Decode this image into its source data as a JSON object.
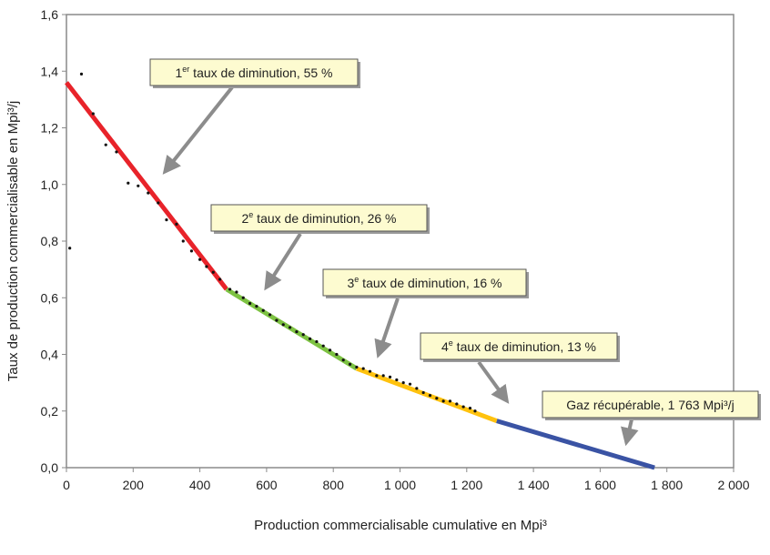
{
  "chart_data": {
    "type": "line",
    "xlabel": "Production commercialisable cumulative en Mpi³",
    "ylabel": "Taux de production commercialisable en Mpi³/j",
    "xlim": [
      0,
      2000
    ],
    "ylim": [
      0,
      1.6
    ],
    "x_ticks": [
      "0",
      "200",
      "400",
      "600",
      "800",
      "1 000",
      "1 200",
      "1 400",
      "1 600",
      "1 800",
      "2 000"
    ],
    "y_ticks": [
      "0,0",
      "0,2",
      "0,4",
      "0,6",
      "0,8",
      "1,0",
      "1,2",
      "1,4",
      "1,6"
    ],
    "grid": false,
    "series": [
      {
        "color": "#e8232a",
        "points": [
          [
            0,
            1.36
          ],
          [
            480,
            0.63
          ]
        ]
      },
      {
        "color": "#7dc242",
        "points": [
          [
            480,
            0.63
          ],
          [
            870,
            0.35
          ]
        ]
      },
      {
        "color": "#ffc20e",
        "points": [
          [
            870,
            0.35
          ],
          [
            1290,
            0.165
          ]
        ]
      },
      {
        "color": "#3a53a4",
        "points": [
          [
            1290,
            0.165
          ],
          [
            1763,
            0
          ]
        ]
      }
    ],
    "observations": {
      "color": "#111111",
      "points": [
        [
          10,
          0.775
        ],
        [
          45,
          1.39
        ],
        [
          80,
          1.25
        ],
        [
          118,
          1.14
        ],
        [
          150,
          1.115
        ],
        [
          185,
          1.005
        ],
        [
          215,
          0.995
        ],
        [
          245,
          0.97
        ],
        [
          275,
          0.935
        ],
        [
          300,
          0.875
        ],
        [
          330,
          0.86
        ],
        [
          350,
          0.8
        ],
        [
          375,
          0.765
        ],
        [
          400,
          0.735
        ],
        [
          420,
          0.71
        ],
        [
          440,
          0.69
        ],
        [
          460,
          0.665
        ],
        [
          490,
          0.63
        ],
        [
          510,
          0.62
        ],
        [
          530,
          0.6
        ],
        [
          550,
          0.58
        ],
        [
          570,
          0.57
        ],
        [
          590,
          0.555
        ],
        [
          610,
          0.54
        ],
        [
          630,
          0.52
        ],
        [
          650,
          0.505
        ],
        [
          670,
          0.495
        ],
        [
          690,
          0.48
        ],
        [
          710,
          0.47
        ],
        [
          730,
          0.455
        ],
        [
          750,
          0.445
        ],
        [
          770,
          0.43
        ],
        [
          790,
          0.415
        ],
        [
          810,
          0.4
        ],
        [
          830,
          0.38
        ],
        [
          850,
          0.365
        ],
        [
          870,
          0.355
        ],
        [
          890,
          0.35
        ],
        [
          910,
          0.34
        ],
        [
          930,
          0.325
        ],
        [
          950,
          0.325
        ],
        [
          970,
          0.32
        ],
        [
          990,
          0.31
        ],
        [
          1010,
          0.3
        ],
        [
          1030,
          0.295
        ],
        [
          1050,
          0.28
        ],
        [
          1070,
          0.265
        ],
        [
          1090,
          0.255
        ],
        [
          1110,
          0.245
        ],
        [
          1130,
          0.235
        ],
        [
          1150,
          0.235
        ],
        [
          1170,
          0.225
        ],
        [
          1190,
          0.215
        ],
        [
          1210,
          0.21
        ],
        [
          1225,
          0.2
        ]
      ]
    },
    "annotations": [
      {
        "num": "1",
        "sup": "er",
        "text": " taux de diminution, 55 %",
        "target": [
          285,
          1.03
        ]
      },
      {
        "num": "2",
        "sup": "e",
        "text": " taux de diminution, 26 %",
        "target": [
          590,
          0.62
        ]
      },
      {
        "num": "3",
        "sup": "e",
        "text": " taux de diminution, 16 %",
        "target": [
          930,
          0.38
        ]
      },
      {
        "num": "4",
        "sup": "e",
        "text": " taux de diminution, 13 %",
        "target": [
          1330,
          0.22
        ]
      },
      {
        "num": "",
        "sup": "",
        "text": "Gaz récupérable, 1 763 Mpi³/j",
        "target": [
          1675,
          0.07
        ]
      }
    ],
    "annotation_box_color": "#fdfbd0",
    "arrow_color": "#8c8c8c"
  }
}
